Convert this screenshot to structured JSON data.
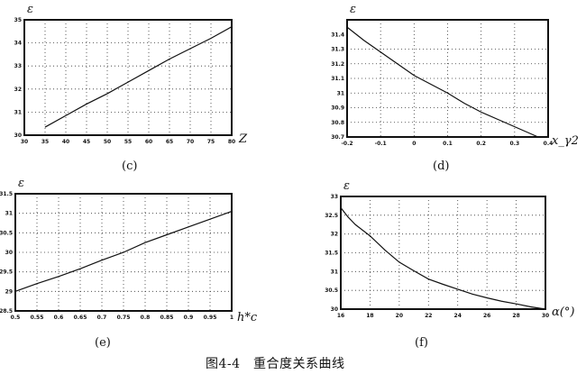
{
  "caption": "图4-4　重合度关系曲线",
  "chart_data": [
    {
      "type": "line",
      "panel_label": "(c)",
      "xlabel": "Z",
      "ylabel": "ε",
      "xlim": [
        30,
        80
      ],
      "ylim": [
        30,
        35
      ],
      "grid": true,
      "x_ticks": [
        "30",
        "35",
        "40",
        "45",
        "50",
        "55",
        "60",
        "65",
        "70",
        "75",
        "80"
      ],
      "y_ticks": [
        "30",
        "31",
        "32",
        "33",
        "34",
        "35"
      ],
      "x": [
        35,
        40,
        45,
        50,
        55,
        60,
        65,
        70,
        75,
        80
      ],
      "y": [
        30.35,
        30.85,
        31.35,
        31.8,
        32.3,
        32.8,
        33.3,
        33.75,
        34.2,
        34.7
      ]
    },
    {
      "type": "line",
      "panel_label": "(d)",
      "xlabel": "x_γ2",
      "ylabel": "ε",
      "xlim": [
        -0.2,
        0.4
      ],
      "ylim": [
        30.7,
        31.5
      ],
      "grid": true,
      "x_ticks": [
        "-0.2",
        "-0.1",
        "0",
        "0.1",
        "0.2",
        "0.3",
        "0.4"
      ],
      "y_ticks": [
        "30.7",
        "30.8",
        "30.9",
        "31",
        "31.1",
        "31.2",
        "31.3",
        "31.4"
      ],
      "x": [
        -0.2,
        -0.15,
        -0.1,
        -0.05,
        0,
        0.05,
        0.1,
        0.15,
        0.2,
        0.25,
        0.3,
        0.37
      ],
      "y": [
        31.45,
        31.36,
        31.28,
        31.2,
        31.12,
        31.06,
        31.0,
        30.93,
        30.87,
        30.82,
        30.77,
        30.7
      ]
    },
    {
      "type": "line",
      "panel_label": "(e)",
      "xlabel": "h*c",
      "ylabel": "ε",
      "xlim": [
        0.5,
        1.0
      ],
      "ylim": [
        28.5,
        31.5
      ],
      "grid": true,
      "x_ticks": [
        "0.5",
        "0.55",
        "0.6",
        "0.65",
        "0.7",
        "0.75",
        "0.8",
        "0.85",
        "0.9",
        "0.95",
        "1"
      ],
      "y_ticks": [
        "28.5",
        "29",
        "29.5",
        "30",
        "30.5",
        "31",
        "31.5"
      ],
      "x": [
        0.5,
        0.55,
        0.6,
        0.65,
        0.7,
        0.75,
        0.8,
        0.85,
        0.9,
        0.95,
        1.0
      ],
      "y": [
        29.0,
        29.2,
        29.38,
        29.58,
        29.8,
        30.0,
        30.25,
        30.45,
        30.65,
        30.85,
        31.05
      ]
    },
    {
      "type": "line",
      "panel_label": "(f)",
      "xlabel": "α(°)",
      "ylabel": "ε",
      "xlim": [
        16,
        30
      ],
      "ylim": [
        30,
        33
      ],
      "grid": true,
      "x_ticks": [
        "16",
        "18",
        "20",
        "22",
        "24",
        "26",
        "28",
        "30"
      ],
      "y_ticks": [
        "30",
        "30.5",
        "31",
        "31.5",
        "32",
        "32.5",
        "33"
      ],
      "x": [
        16,
        16.5,
        17,
        18,
        19,
        20,
        21,
        22,
        23,
        24,
        25,
        26,
        27,
        28,
        29,
        30
      ],
      "y": [
        32.7,
        32.45,
        32.25,
        31.95,
        31.58,
        31.25,
        31.02,
        30.8,
        30.66,
        30.53,
        30.4,
        30.3,
        30.21,
        30.14,
        30.06,
        30.0
      ]
    }
  ]
}
